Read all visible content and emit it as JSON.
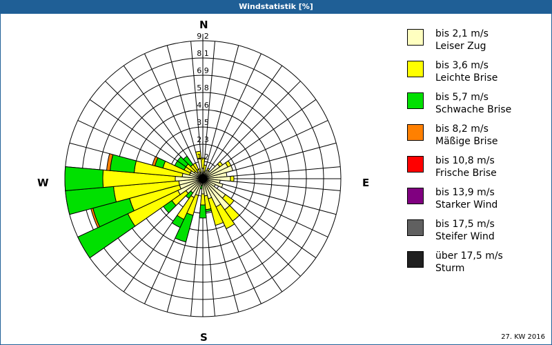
{
  "header": {
    "title": "Windstatistik [%]"
  },
  "cardinals": {
    "north": "N",
    "east": "E",
    "south": "S",
    "west": "W"
  },
  "footer": {
    "week": "27. KW 2016"
  },
  "legend": [
    {
      "range": "bis 2,1 m/s",
      "name": "Leiser Zug",
      "color": "#ffffc0"
    },
    {
      "range": "bis 3,6 m/s",
      "name": "Leichte Brise",
      "color": "#ffff00"
    },
    {
      "range": "bis 5,7 m/s",
      "name": "Schwache Brise",
      "color": "#00e000"
    },
    {
      "range": "bis 8,2 m/s",
      "name": "Mäßige Brise",
      "color": "#ff8000"
    },
    {
      "range": "bis 10,8 m/s",
      "name": "Frische Brise",
      "color": "#ff0000"
    },
    {
      "range": "bis 13,9 m/s",
      "name": "Starker Wind",
      "color": "#800080"
    },
    {
      "range": "bis 17,5 m/s",
      "name": "Steifer Wind",
      "color": "#606060"
    },
    {
      "range": "über 17,5 m/s",
      "name": "Sturm",
      "color": "#202020"
    }
  ],
  "chart_data": {
    "type": "polar-bar (wind rose, stacked)",
    "title": "Windstatistik [%]",
    "unit": "%",
    "radial_ticks": [
      "1,2",
      "2,3",
      "3,5",
      "4,6",
      "5,8",
      "6,9",
      "8,1",
      "9,2"
    ],
    "radial_max": 9.2,
    "direction_step_deg": 10,
    "directions_deg": [
      0,
      10,
      20,
      30,
      40,
      50,
      60,
      70,
      80,
      90,
      100,
      110,
      120,
      130,
      140,
      150,
      160,
      170,
      180,
      190,
      200,
      210,
      220,
      230,
      240,
      250,
      260,
      270,
      280,
      290,
      300,
      310,
      320,
      330,
      340,
      350
    ],
    "series": [
      {
        "name": "bis 2,1 m/s – Leiser Zug",
        "color": "#ffffc0",
        "values": [
          0.7,
          0.46,
          0.55,
          0.64,
          0.64,
          1.38,
          1.84,
          2.07,
          1.61,
          1.84,
          1.15,
          1.38,
          0.92,
          1.84,
          2.53,
          2.07,
          1.38,
          1.15,
          1.01,
          0.46,
          1.15,
          1.38,
          1.15,
          1.38,
          1.84,
          1.61,
          1.61,
          1.84,
          1.38,
          0.92,
          0.92,
          0.69,
          0.55,
          0.69,
          0.46,
          1.38
        ]
      },
      {
        "name": "bis 3,6 m/s – Leichte Brise",
        "color": "#ffff00",
        "values": [
          0.68,
          0.46,
          0,
          0.14,
          0,
          0.23,
          0.23,
          0,
          0,
          0.23,
          0,
          0,
          0,
          0.69,
          0.92,
          1.61,
          1.84,
          0.92,
          0.74,
          0,
          1.38,
          1.61,
          0,
          1.15,
          3.68,
          3.45,
          4.37,
          4.83,
          3.22,
          1.84,
          0.46,
          0.69,
          0.6,
          0.46,
          0.23,
          0.46
        ]
      },
      {
        "name": "bis 5,7 m/s – Schwache Brise",
        "color": "#00e000",
        "values": [
          0,
          0,
          0,
          0,
          0,
          0,
          0,
          0,
          0,
          0,
          0,
          0,
          0,
          0,
          0,
          0,
          0,
          0.14,
          0.87,
          0.23,
          1.84,
          0.6,
          0.46,
          0.69,
          3.68,
          2.53,
          3.22,
          2.53,
          1.61,
          0.55,
          0.69,
          0.69,
          0.69,
          0,
          0,
          0
        ]
      },
      {
        "name": "bis 8,2 m/s – Mäßige Brise",
        "color": "#ff8000",
        "values": [
          0,
          0,
          0,
          0,
          0,
          0,
          0,
          0,
          0,
          0,
          0,
          0,
          0,
          0,
          0,
          0,
          0,
          0,
          0,
          0,
          0,
          0,
          0,
          0,
          0,
          0.14,
          0,
          0,
          0.23,
          0.18,
          0,
          0,
          0,
          0,
          0,
          0
        ]
      },
      {
        "name": "bis 10,8 m/s – Frische Brise",
        "color": "#ff0000",
        "values": [
          0,
          0,
          0,
          0,
          0,
          0,
          0,
          0,
          0,
          0,
          0,
          0,
          0,
          0,
          0,
          0,
          0,
          0,
          0,
          0,
          0,
          0,
          0,
          0,
          0,
          0,
          0,
          0,
          0,
          0,
          0,
          0,
          0,
          0,
          0,
          0
        ]
      },
      {
        "name": "bis 13,9 m/s – Starker Wind",
        "color": "#800080",
        "values": [
          0,
          0,
          0,
          0,
          0,
          0,
          0,
          0,
          0,
          0,
          0,
          0,
          0,
          0,
          0,
          0,
          0,
          0,
          0,
          0,
          0,
          0,
          0,
          0,
          0,
          0,
          0,
          0,
          0,
          0,
          0,
          0,
          0,
          0,
          0,
          0
        ]
      },
      {
        "name": "bis 17,5 m/s – Steifer Wind",
        "color": "#606060",
        "values": [
          0,
          0,
          0,
          0,
          0,
          0,
          0,
          0,
          0,
          0,
          0,
          0,
          0,
          0,
          0,
          0,
          0,
          0,
          0,
          0,
          0,
          0,
          0,
          0,
          0,
          0,
          0,
          0,
          0,
          0,
          0,
          0,
          0,
          0,
          0,
          0
        ]
      },
      {
        "name": "über 17,5 m/s – Sturm",
        "color": "#202020",
        "values": [
          0,
          0,
          0,
          0,
          0,
          0,
          0,
          0,
          0,
          0,
          0,
          0,
          0,
          0,
          0,
          0,
          0,
          0,
          0,
          0,
          0,
          0,
          0,
          0,
          0,
          0,
          0,
          0,
          0,
          0,
          0,
          0,
          0,
          0,
          0,
          0
        ]
      }
    ],
    "legend_position": "right",
    "grid": true
  }
}
